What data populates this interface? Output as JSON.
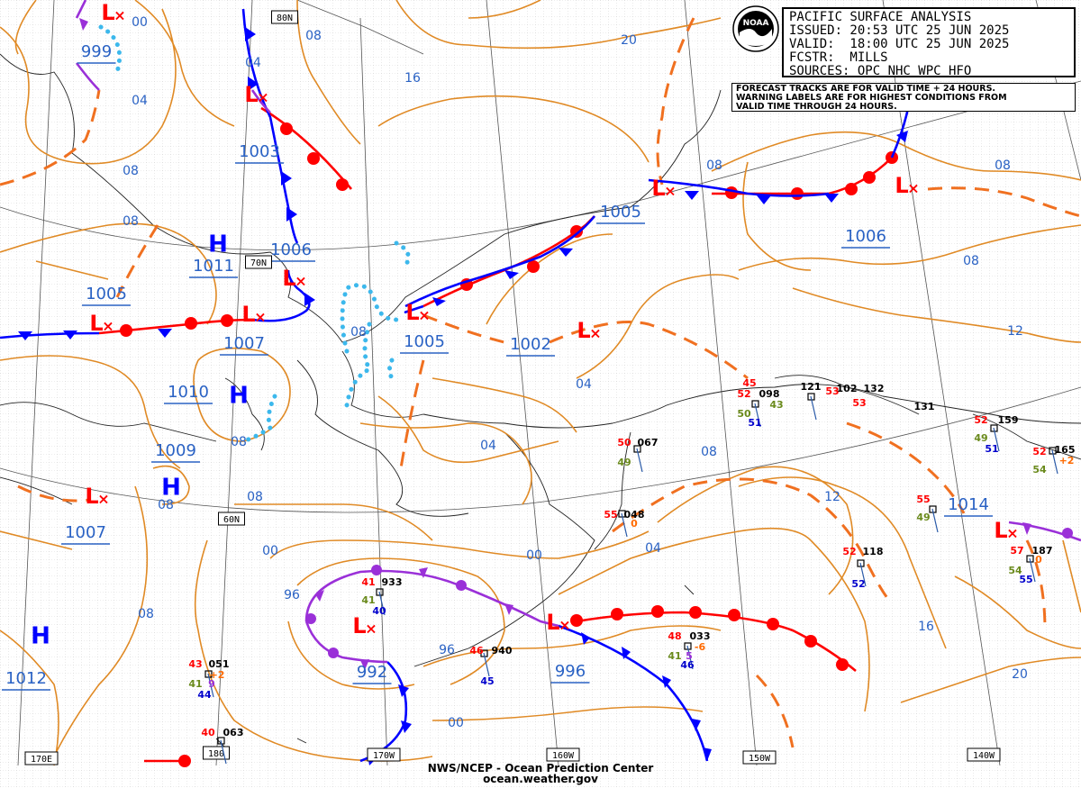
{
  "header": {
    "title": "PACIFIC SURFACE ANALYSIS",
    "issued": "ISSUED: 20:53 UTC 25 JUN 2025",
    "valid": "VALID:  18:00 UTC 25 JUN 2025",
    "fcstr": "FCSTR:  MILLS",
    "sources": "SOURCES: OPC NHC WPC HFO"
  },
  "notes": {
    "line1": "FORECAST TRACKS ARE FOR VALID TIME + 24 HOURS.",
    "line2": "WARNING LABELS ARE FOR HIGHEST CONDITIONS FROM",
    "line3": "VALID TIME THROUGH 24 HOURS."
  },
  "logo": {
    "text": "NOAA"
  },
  "footer": {
    "line1": "NWS/NCEP - Ocean Prediction Center",
    "line2": "ocean.weather.gov"
  },
  "graticule_labels": [
    "80N",
    "70N",
    "60N",
    "170E",
    "180",
    "170W",
    "160W",
    "150W",
    "140W"
  ],
  "pressure_centers": [
    {
      "type": "L",
      "value": "999"
    },
    {
      "type": "L",
      "value": "1003"
    },
    {
      "type": "H",
      "value": "1011"
    },
    {
      "type": "L",
      "value": "1006"
    },
    {
      "type": "L",
      "value": "1005"
    },
    {
      "type": "L",
      "value": "1007"
    },
    {
      "type": "H",
      "value": "1010"
    },
    {
      "type": "H",
      "value": "1009"
    },
    {
      "type": "L",
      "value": "1007"
    },
    {
      "type": "L",
      "value": "1005"
    },
    {
      "type": "L",
      "value": "1005"
    },
    {
      "type": "L",
      "value": "1002"
    },
    {
      "type": "L",
      "value": "1006"
    },
    {
      "type": "H",
      "value": "1012"
    },
    {
      "type": "L",
      "value": "992"
    },
    {
      "type": "L",
      "value": "996"
    },
    {
      "type": "L",
      "value": "1014"
    }
  ],
  "isobar_labels": [
    "00",
    "04",
    "08",
    "08",
    "04",
    "08",
    "16",
    "20",
    "08",
    "08",
    "12",
    "08",
    "04",
    "04",
    "08",
    "12",
    "04",
    "00",
    "08",
    "00",
    "96",
    "96",
    "00",
    "16",
    "20",
    "08",
    "08",
    "08",
    "08"
  ],
  "station_plots": [
    {
      "texts": [
        "52",
        "098",
        "45",
        "50",
        "43",
        "51"
      ]
    },
    {
      "texts": [
        "121",
        "102",
        "53",
        "132",
        "53",
        "131"
      ]
    },
    {
      "texts": [
        "52",
        "159",
        "49",
        "51"
      ]
    },
    {
      "texts": [
        "52",
        "165",
        "54",
        "+2"
      ]
    },
    {
      "texts": [
        "50",
        "067",
        "49"
      ]
    },
    {
      "texts": [
        "55",
        "048",
        "0"
      ]
    },
    {
      "texts": [
        "55",
        "49"
      ]
    },
    {
      "texts": [
        "52",
        "118",
        "52"
      ]
    },
    {
      "texts": [
        "57",
        "187",
        "54",
        "55",
        "0"
      ]
    },
    {
      "texts": [
        "41",
        "933",
        "41",
        "40"
      ]
    },
    {
      "texts": [
        "46",
        "940",
        "45"
      ]
    },
    {
      "texts": [
        "48",
        "033",
        "41",
        "5",
        "46",
        "-6"
      ]
    },
    {
      "texts": [
        "43",
        "051",
        "41",
        "9",
        "44",
        "+2"
      ]
    },
    {
      "texts": [
        "40",
        "063"
      ]
    }
  ]
}
